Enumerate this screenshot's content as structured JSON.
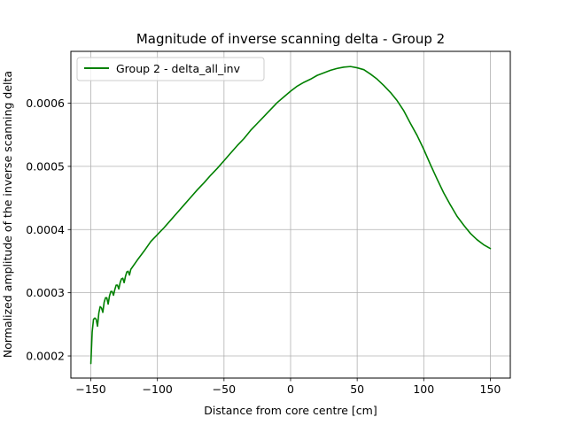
{
  "chart_data": {
    "type": "line",
    "title": "Magnitude of inverse scanning delta - Group 2",
    "xlabel": "Distance from core centre [cm]",
    "ylabel": "Normalized amplitude of the inverse scanning delta",
    "xlim": [
      -165,
      165
    ],
    "ylim": [
      0.000165,
      0.000682
    ],
    "xticks": [
      -150,
      -100,
      -50,
      0,
      50,
      100,
      150
    ],
    "xtick_labels": [
      "−150",
      "−100",
      "−50",
      "0",
      "50",
      "100",
      "150"
    ],
    "yticks": [
      0.0002,
      0.0003,
      0.0004,
      0.0005,
      0.0006
    ],
    "ytick_labels": [
      "0.0002",
      "0.0003",
      "0.0004",
      "0.0005",
      "0.0006"
    ],
    "grid": true,
    "legend_position": "top-left",
    "series": [
      {
        "name": "Group 2 - delta_all_inv",
        "color": "#008000",
        "x": [
          -150,
          -149,
          -148,
          -147,
          -146,
          -145,
          -144,
          -143,
          -142,
          -141,
          -140,
          -139,
          -138,
          -137,
          -136,
          -135,
          -134,
          -133,
          -132,
          -131,
          -130,
          -129,
          -128,
          -127,
          -126,
          -125,
          -124,
          -123,
          -122,
          -121,
          -120,
          -115,
          -110,
          -105,
          -100,
          -95,
          -90,
          -85,
          -80,
          -75,
          -70,
          -65,
          -60,
          -55,
          -50,
          -45,
          -40,
          -35,
          -30,
          -25,
          -20,
          -15,
          -10,
          -5,
          0,
          5,
          10,
          15,
          20,
          25,
          30,
          35,
          40,
          45,
          50,
          55,
          60,
          65,
          70,
          75,
          80,
          85,
          90,
          95,
          100,
          105,
          110,
          115,
          120,
          125,
          130,
          135,
          140,
          145,
          150
        ],
        "y": [
          0.000188,
          0.000238,
          0.000258,
          0.00026,
          0.000258,
          0.000247,
          0.000268,
          0.000278,
          0.000276,
          0.000269,
          0.000285,
          0.000292,
          0.000292,
          0.000282,
          0.000295,
          0.000302,
          0.000302,
          0.000296,
          0.000305,
          0.000312,
          0.000312,
          0.000306,
          0.000316,
          0.000322,
          0.000323,
          0.000316,
          0.000326,
          0.000333,
          0.000334,
          0.000328,
          0.000337,
          0.000352,
          0.000366,
          0.000381,
          0.000392,
          0.000403,
          0.000415,
          0.000427,
          0.000439,
          0.000451,
          0.000463,
          0.000474,
          0.000486,
          0.000497,
          0.000509,
          0.000521,
          0.000533,
          0.000544,
          0.000557,
          0.000568,
          0.000579,
          0.00059,
          0.000601,
          0.00061,
          0.000619,
          0.000627,
          0.000633,
          0.000638,
          0.000644,
          0.000648,
          0.000652,
          0.000655,
          0.000657,
          0.000658,
          0.000656,
          0.000653,
          0.000646,
          0.000638,
          0.000628,
          0.000617,
          0.000604,
          0.000588,
          0.000568,
          0.000549,
          0.000527,
          0.000503,
          0.00048,
          0.000458,
          0.000439,
          0.000421,
          0.000407,
          0.000394,
          0.000384,
          0.000376,
          0.00037
        ]
      }
    ]
  }
}
